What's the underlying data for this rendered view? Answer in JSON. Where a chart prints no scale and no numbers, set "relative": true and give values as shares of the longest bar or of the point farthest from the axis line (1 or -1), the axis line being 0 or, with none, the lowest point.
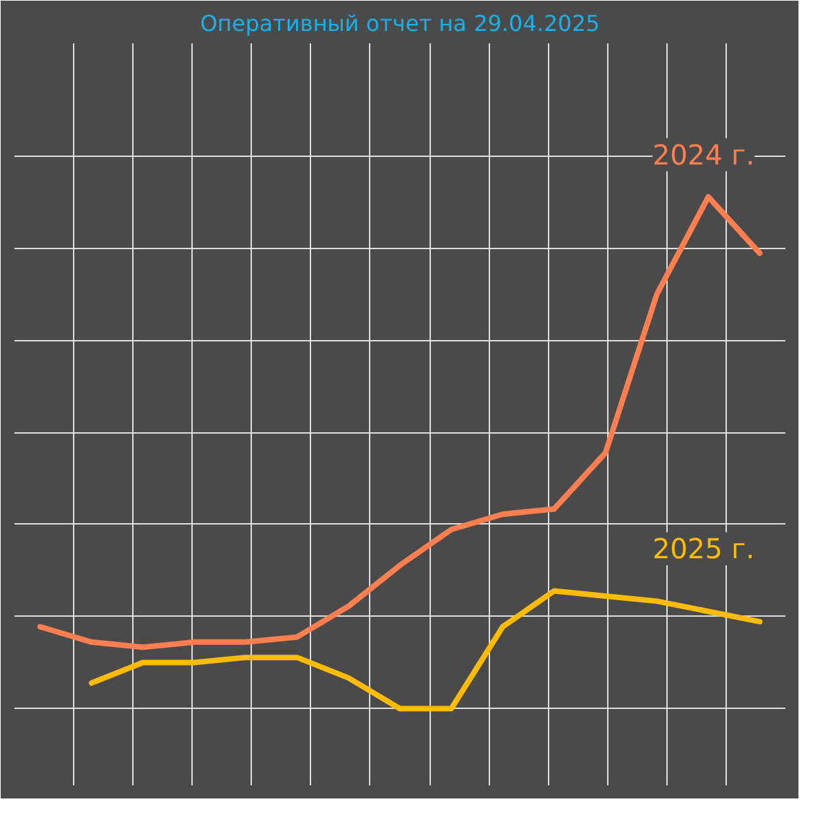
{
  "chart_data": {
    "type": "line",
    "title": "Оперативный отчет на 29.04.2025",
    "relative": true,
    "grid": true,
    "legend": false,
    "line_style": "solid",
    "marker": "none",
    "categories": [
      null,
      null,
      null,
      null,
      null,
      null,
      null,
      null,
      null,
      null,
      null,
      null,
      null,
      null,
      null
    ],
    "series": [
      {
        "name": "2024 г.",
        "color": "#ff7f50",
        "values": [
          0.16,
          0.13,
          0.12,
          0.13,
          0.13,
          0.14,
          0.2,
          0.28,
          0.35,
          0.38,
          0.39,
          0.5,
          0.81,
          1,
          0.89
        ]
      },
      {
        "name": "2025 г.",
        "color": "#ffbb00",
        "values": [
          null,
          0.05,
          0.09,
          0.09,
          0.1,
          0.1,
          0.06,
          0.0,
          0.0,
          0.16,
          0.23,
          0.22,
          0.21,
          0.19,
          0.17
        ]
      }
    ]
  }
}
